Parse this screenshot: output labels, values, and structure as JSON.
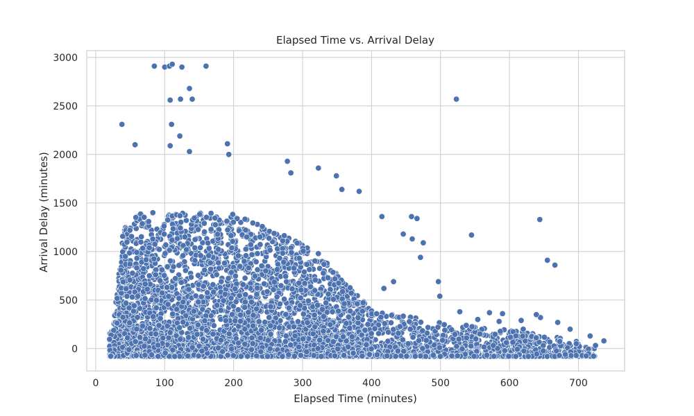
{
  "chart_data": {
    "type": "scatter",
    "title": "Elapsed Time vs. Arrival Delay",
    "xlabel": "Elapsed Time (minutes)",
    "ylabel": "Arrival Delay (minutes)",
    "xlim": [
      -13,
      767
    ],
    "ylim": [
      -230,
      3070
    ],
    "xticks": [
      0,
      100,
      200,
      300,
      400,
      500,
      600,
      700
    ],
    "yticks": [
      0,
      500,
      1000,
      1500,
      2000,
      2500,
      3000
    ],
    "grid": true,
    "point_color": "#4c72b0",
    "outliers": [
      {
        "x": 85,
        "y": 2910
      },
      {
        "x": 100,
        "y": 2900
      },
      {
        "x": 107,
        "y": 2910
      },
      {
        "x": 111,
        "y": 2930
      },
      {
        "x": 125,
        "y": 2900
      },
      {
        "x": 160,
        "y": 2910
      },
      {
        "x": 523,
        "y": 2570
      },
      {
        "x": 108,
        "y": 2560
      },
      {
        "x": 123,
        "y": 2570
      },
      {
        "x": 140,
        "y": 2570
      },
      {
        "x": 136,
        "y": 2680
      },
      {
        "x": 38,
        "y": 2310
      },
      {
        "x": 110,
        "y": 2310
      },
      {
        "x": 122,
        "y": 2190
      },
      {
        "x": 57,
        "y": 2100
      },
      {
        "x": 108,
        "y": 2090
      },
      {
        "x": 136,
        "y": 2030
      },
      {
        "x": 191,
        "y": 2110
      },
      {
        "x": 193,
        "y": 2000
      },
      {
        "x": 278,
        "y": 1930
      },
      {
        "x": 323,
        "y": 1860
      },
      {
        "x": 283,
        "y": 1810
      },
      {
        "x": 349,
        "y": 1780
      },
      {
        "x": 357,
        "y": 1640
      },
      {
        "x": 382,
        "y": 1620
      },
      {
        "x": 415,
        "y": 1360
      },
      {
        "x": 458,
        "y": 1360
      },
      {
        "x": 466,
        "y": 1340
      },
      {
        "x": 446,
        "y": 1180
      },
      {
        "x": 459,
        "y": 1130
      },
      {
        "x": 475,
        "y": 1090
      },
      {
        "x": 471,
        "y": 940
      },
      {
        "x": 545,
        "y": 1170
      },
      {
        "x": 644,
        "y": 1330
      },
      {
        "x": 655,
        "y": 910
      },
      {
        "x": 666,
        "y": 860
      },
      {
        "x": 497,
        "y": 690
      },
      {
        "x": 499,
        "y": 540
      },
      {
        "x": 418,
        "y": 620
      },
      {
        "x": 432,
        "y": 690
      },
      {
        "x": 737,
        "y": 80
      },
      {
        "x": 717,
        "y": 130
      },
      {
        "x": 688,
        "y": 200
      },
      {
        "x": 645,
        "y": 320
      },
      {
        "x": 639,
        "y": 350
      },
      {
        "x": 617,
        "y": 290
      },
      {
        "x": 590,
        "y": 360
      },
      {
        "x": 571,
        "y": 370
      },
      {
        "x": 554,
        "y": 300
      },
      {
        "x": 528,
        "y": 380
      },
      {
        "x": 585,
        "y": 280
      },
      {
        "x": 670,
        "y": 270
      },
      {
        "x": 620,
        "y": 200
      },
      {
        "x": 697,
        "y": 50
      }
    ]
  }
}
